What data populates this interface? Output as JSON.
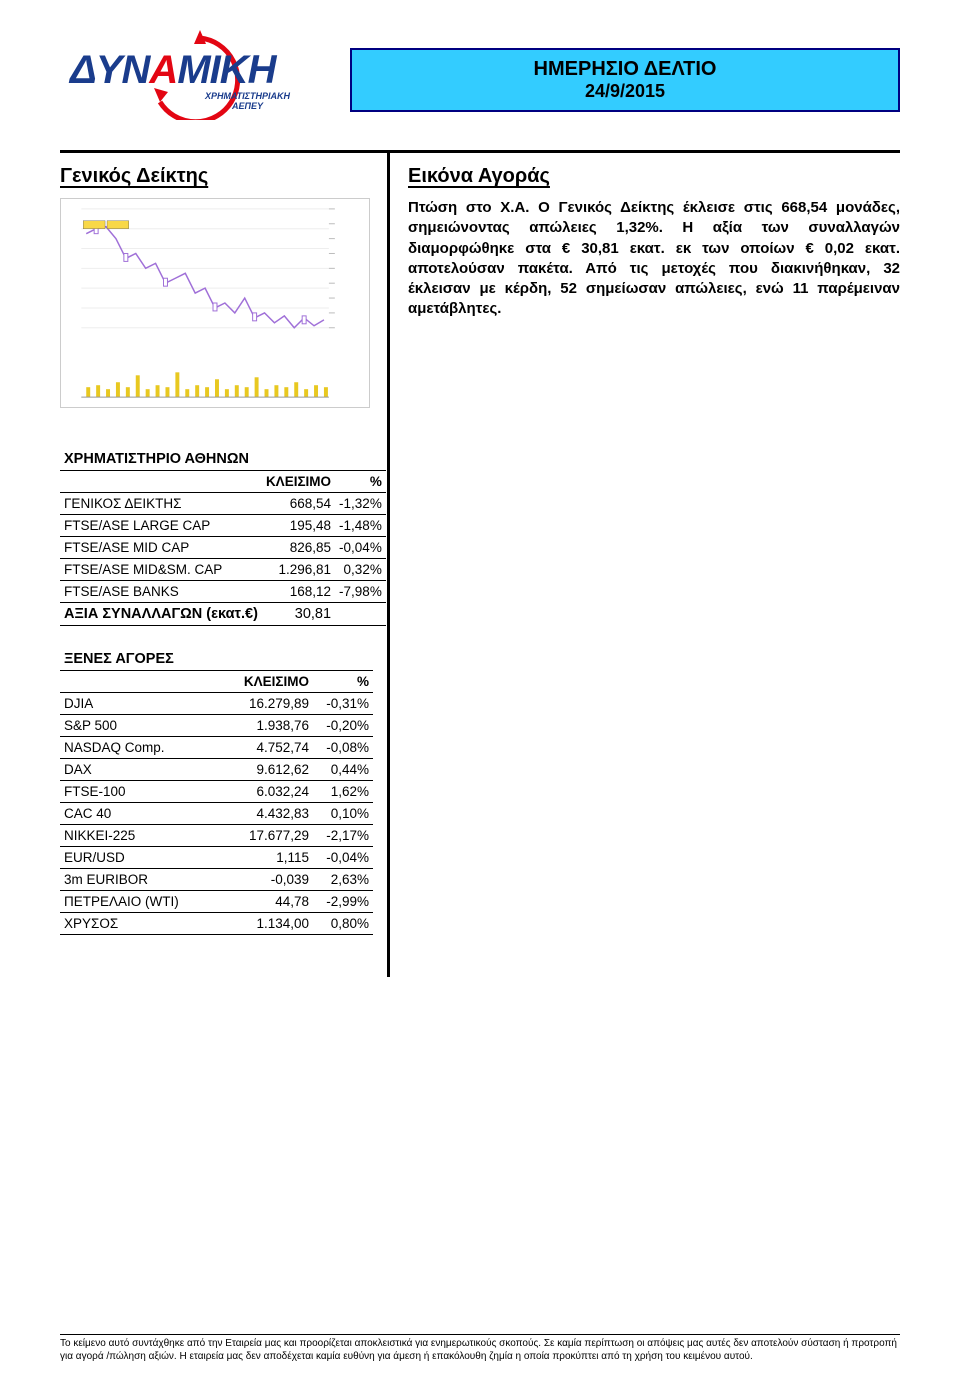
{
  "header": {
    "logo_main1": "ΔYN",
    "logo_main2": "A",
    "logo_main3": "MIKH",
    "logo_sub1": "ΧΡΗΜΑΤΙΣΤΗΡΙΑΚΗ",
    "logo_sub2": "ΑΕΠΕΥ",
    "title1": "ΗΜΕΡΗΣΙΟ ΔΕΛΤΙΟ",
    "title2": "24/9/2015"
  },
  "left": {
    "heading": "Γενικός Δείκτης",
    "chart": {
      "line_color": "#a070d8",
      "volume_color": "#e8c820",
      "grid_color": "#eeeeee",
      "background": "#ffffff"
    }
  },
  "right": {
    "heading": "Εικόνα Αγοράς",
    "summary": "Πτώση στο Χ.Α. Ο Γενικός Δείκτης έκλεισε στις 668,54 μονάδες, σημειώνοντας απώλειες 1,32%. Η αξία των συναλλαγών διαμορφώθηκε στα € 30,81 εκατ. εκ των οποίων € 0,02 εκατ. αποτελούσαν πακέτα. Από τις μετοχές που διακινήθηκαν, 32 έκλεισαν με κέρδη, 52 σημείωσαν απώλειες, ενώ 11 παρέμειναν αμετάβλητες."
  },
  "athens": {
    "title": "ΧΡΗΜΑΤΙΣΤΗΡΙΟ ΑΘΗΝΩΝ",
    "col_close": "ΚΛΕΙΣΙΜΟ",
    "col_pct": "%",
    "rows": [
      {
        "name": "ΓΕΝΙΚΟΣ ΔΕΙΚΤΗΣ",
        "close": "668,54",
        "pct": "-1,32%"
      },
      {
        "name": "FTSE/ASE LARGE CAP",
        "close": "195,48",
        "pct": "-1,48%"
      },
      {
        "name": "FTSE/ASE MID CAP",
        "close": "826,85",
        "pct": "-0,04%"
      },
      {
        "name": "FTSE/ASE MID&SM. CAP",
        "close": "1.296,81",
        "pct": "0,32%"
      },
      {
        "name": "FTSE/ASE BANKS",
        "close": "168,12",
        "pct": "-7,98%"
      }
    ],
    "footer_row": {
      "name": "ΑΞΙΑ ΣΥΝΑΛΛΑΓΩΝ (εκατ.€)",
      "close": "30,81",
      "pct": ""
    }
  },
  "foreign": {
    "title": "ΞΕΝΕΣ ΑΓΟΡΕΣ",
    "col_close": "ΚΛΕΙΣΙΜΟ",
    "col_pct": "%",
    "rows": [
      {
        "name": "DJIA",
        "close": "16.279,89",
        "pct": "-0,31%"
      },
      {
        "name": "S&P 500",
        "close": "1.938,76",
        "pct": "-0,20%"
      },
      {
        "name": "NASDAQ Comp.",
        "close": "4.752,74",
        "pct": "-0,08%"
      },
      {
        "name": "DAX",
        "close": "9.612,62",
        "pct": "0,44%"
      },
      {
        "name": "FTSE-100",
        "close": "6.032,24",
        "pct": "1,62%"
      },
      {
        "name": "CAC 40",
        "close": "4.432,83",
        "pct": "0,10%"
      },
      {
        "name": "NIKKEI-225",
        "close": "17.677,29",
        "pct": "-2,17%"
      },
      {
        "name": "EUR/USD",
        "close": "1,115",
        "pct": "-0,04%"
      },
      {
        "name": "3m EURIBOR",
        "close": "-0,039",
        "pct": "2,63%"
      },
      {
        "name": "ΠΕΤΡΕΛΑΙΟ (WTI)",
        "close": "44,78",
        "pct": "-2,99%"
      },
      {
        "name": "ΧΡΥΣΟΣ",
        "close": "1.134,00",
        "pct": "0,80%"
      }
    ]
  },
  "footer": {
    "text": "Το κείμενο αυτό συντάχθηκε από την Εταιρεία μας και προορίζεται αποκλειστικά για ενημερωτικούς σκοπούς. Σε καμία περίπτωση οι απόψεις μας αυτές δεν αποτελούν σύσταση ή προτροπή για αγορά /πώληση αξιών. Η εταιρεία μας δεν αποδέχεται καμία ευθύνη για άμεση ή επακόλουθη ζημία η οποία προκύπτει από τη χρήση του κειμένου αυτού."
  }
}
